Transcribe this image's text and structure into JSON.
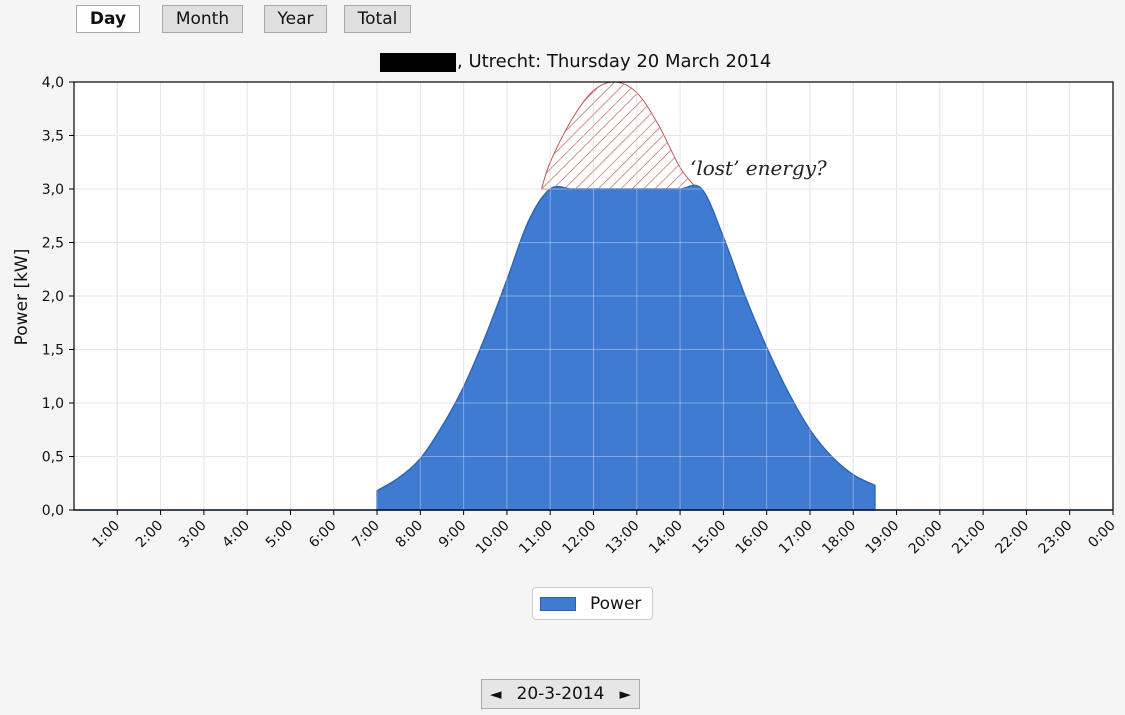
{
  "tabs": [
    {
      "label": "Day",
      "active": true
    },
    {
      "label": "Month",
      "active": false
    },
    {
      "label": "Year",
      "active": false
    },
    {
      "label": "Total",
      "active": false
    }
  ],
  "chart": {
    "title_suffix": ", Utrecht: Thursday 20 March 2014",
    "annotation": "‘lost’ energy?",
    "legend_label": "Power",
    "colors": {
      "fill": "#3f7bd0",
      "stroke": "#2f66b8",
      "hatch": "#c05a5a",
      "grid": "#d9d9d9"
    }
  },
  "chart_data": {
    "type": "area",
    "title": "█████, Utrecht: Thursday 20 March 2014",
    "xlabel": "",
    "ylabel": "Power [kW]",
    "ylim": [
      0,
      4
    ],
    "xlim": [
      0,
      24
    ],
    "y_ticks": [
      "0,0",
      "0,5",
      "1,0",
      "1,5",
      "2,0",
      "2,5",
      "3,0",
      "3,5",
      "4,0"
    ],
    "x_ticks": [
      "1:00",
      "2:00",
      "3:00",
      "4:00",
      "5:00",
      "6:00",
      "7:00",
      "8:00",
      "9:00",
      "10:00",
      "11:00",
      "12:00",
      "13:00",
      "14:00",
      "15:00",
      "16:00",
      "17:00",
      "18:00",
      "19:00",
      "20:00",
      "21:00",
      "22:00",
      "23:00",
      "0:00"
    ],
    "grid": true,
    "legend_position": "bottom-center",
    "series": [
      {
        "name": "Power",
        "x": [
          7.0,
          7.5,
          8.0,
          8.5,
          9.0,
          9.5,
          10.0,
          10.5,
          11.0,
          11.5,
          12.0,
          12.5,
          13.0,
          13.5,
          14.0,
          14.5,
          15.0,
          15.5,
          16.0,
          16.5,
          17.0,
          17.5,
          18.0,
          18.5
        ],
        "y": [
          0.18,
          0.3,
          0.48,
          0.78,
          1.15,
          1.62,
          2.15,
          2.7,
          3.0,
          3.0,
          3.0,
          3.0,
          3.0,
          3.0,
          3.0,
          3.0,
          2.55,
          2.0,
          1.52,
          1.1,
          0.75,
          0.5,
          0.33,
          0.23
        ]
      }
    ],
    "clipped_peak": {
      "label": "‘lost’ energy?",
      "x": [
        10.8,
        11.0,
        11.5,
        12.0,
        12.5,
        13.0,
        13.5,
        14.0,
        14.4
      ],
      "y": [
        3.0,
        3.25,
        3.65,
        3.92,
        4.0,
        3.9,
        3.6,
        3.2,
        3.0
      ]
    }
  },
  "date_nav": {
    "prev_icon": "◄",
    "date": "20-3-2014",
    "next_icon": "►"
  }
}
